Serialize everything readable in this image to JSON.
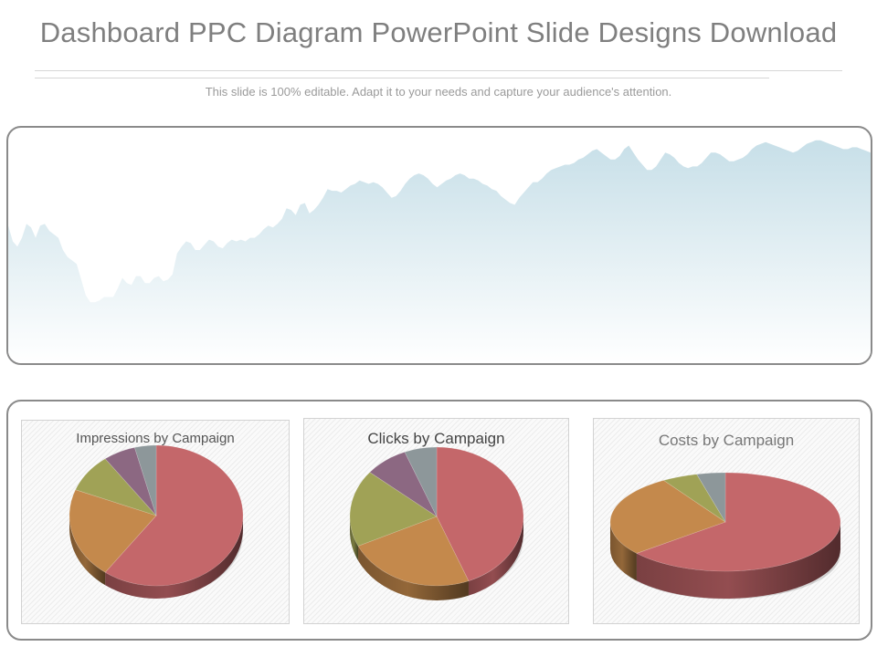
{
  "slide": {
    "title": "Dashboard PPC Diagram PowerPoint Slide Designs Download",
    "subtitle": "This slide is 100% editable. Adapt it to your needs and capture your audience's attention."
  },
  "colors": {
    "area_top": "#c7dfe8",
    "area_bottom": "#ffffff",
    "red": "#c4676a",
    "orange": "#c4894c",
    "olive": "#a0a256",
    "purple": "#8c6882",
    "gray": "#8d979a"
  },
  "chart_data": [
    {
      "type": "area",
      "title": "",
      "x": [
        0,
        1,
        2,
        3,
        4,
        5,
        6,
        7,
        8,
        9,
        10,
        11,
        12,
        13,
        14,
        15,
        16,
        17,
        18,
        19,
        20,
        21,
        22,
        23,
        24,
        25,
        26,
        27,
        28,
        29,
        30,
        31,
        32,
        33,
        34,
        35,
        36,
        37,
        38,
        39,
        40,
        41,
        42,
        43,
        44,
        45,
        46,
        47,
        48,
        49,
        50,
        51,
        52,
        53,
        54,
        55,
        56,
        57,
        58,
        59,
        60,
        61,
        62,
        63,
        64,
        65,
        66,
        67,
        68,
        69,
        70,
        71,
        72,
        73,
        74,
        75,
        76,
        77,
        78,
        79,
        80,
        81,
        82,
        83,
        84,
        85,
        86,
        87,
        88,
        89,
        90,
        91,
        92,
        93,
        94,
        95,
        96,
        97,
        98,
        99,
        100,
        101,
        102,
        103,
        104,
        105,
        106,
        107,
        108,
        109,
        110,
        111,
        112,
        113,
        114,
        115,
        116,
        117,
        118,
        119,
        120,
        121,
        122,
        123,
        124,
        125,
        126,
        127,
        128,
        129,
        130,
        131,
        132,
        133,
        134,
        135,
        136,
        137,
        138,
        139,
        140,
        141,
        142,
        143,
        144,
        145,
        146,
        147,
        148,
        149,
        150,
        151,
        152,
        153,
        154,
        155,
        156,
        157,
        158,
        159,
        160,
        161,
        162,
        163,
        164,
        165,
        166,
        167,
        168,
        169,
        170,
        171,
        172,
        173,
        174,
        175,
        176,
        177,
        178,
        179,
        180,
        181,
        182,
        183,
        184,
        185,
        186,
        187,
        188,
        189
      ],
      "values": [
        79,
        70,
        67,
        72,
        80,
        78,
        72,
        79,
        80,
        76,
        74,
        72,
        65,
        61,
        59,
        57,
        48,
        39,
        35,
        35,
        36,
        38,
        38,
        38,
        43,
        49,
        46,
        45,
        50,
        50,
        46,
        46,
        49,
        50,
        47,
        48,
        51,
        63,
        67,
        70,
        69,
        65,
        65,
        68,
        71,
        70,
        67,
        66,
        69,
        71,
        70,
        71,
        70,
        72,
        72,
        74,
        77,
        79,
        78,
        80,
        83,
        89,
        88,
        85,
        91,
        92,
        86,
        88,
        91,
        95,
        100,
        99,
        99,
        98,
        100,
        102,
        103,
        105,
        104,
        103,
        104,
        103,
        101,
        98,
        95,
        96,
        99,
        103,
        106,
        108,
        109,
        108,
        106,
        103,
        101,
        103,
        105,
        106,
        108,
        109,
        108,
        106,
        106,
        105,
        103,
        102,
        100,
        99,
        96,
        94,
        92,
        91,
        95,
        98,
        101,
        104,
        104,
        106,
        109,
        111,
        112,
        113,
        114,
        114,
        115,
        117,
        118,
        120,
        122,
        123,
        121,
        119,
        117,
        117,
        119,
        123,
        125,
        121,
        117,
        114,
        111,
        111,
        113,
        117,
        121,
        120,
        118,
        115,
        113,
        112,
        113,
        113,
        115,
        118,
        121,
        121,
        120,
        118,
        116,
        116,
        117,
        118,
        120,
        123,
        125,
        126,
        127,
        126,
        125,
        124,
        123,
        122,
        121,
        122,
        124,
        126,
        127,
        128,
        128,
        127,
        126,
        125,
        124,
        123,
        123,
        124,
        124,
        123,
        122,
        121
      ]
    },
    {
      "type": "pie",
      "title": "Impressions by Campaign",
      "values": [
        60,
        21,
        9,
        6,
        4
      ],
      "colors": [
        "red",
        "orange",
        "olive",
        "purple",
        "gray"
      ]
    },
    {
      "type": "pie",
      "title": "Clicks by Campaign",
      "values": [
        44,
        24,
        18,
        8,
        6
      ],
      "colors": [
        "red",
        "orange",
        "olive",
        "purple",
        "gray"
      ]
    },
    {
      "type": "pie",
      "title": "Costs by Campaign",
      "values": [
        64,
        27,
        5,
        4
      ],
      "colors": [
        "red",
        "orange",
        "olive",
        "gray"
      ]
    }
  ]
}
